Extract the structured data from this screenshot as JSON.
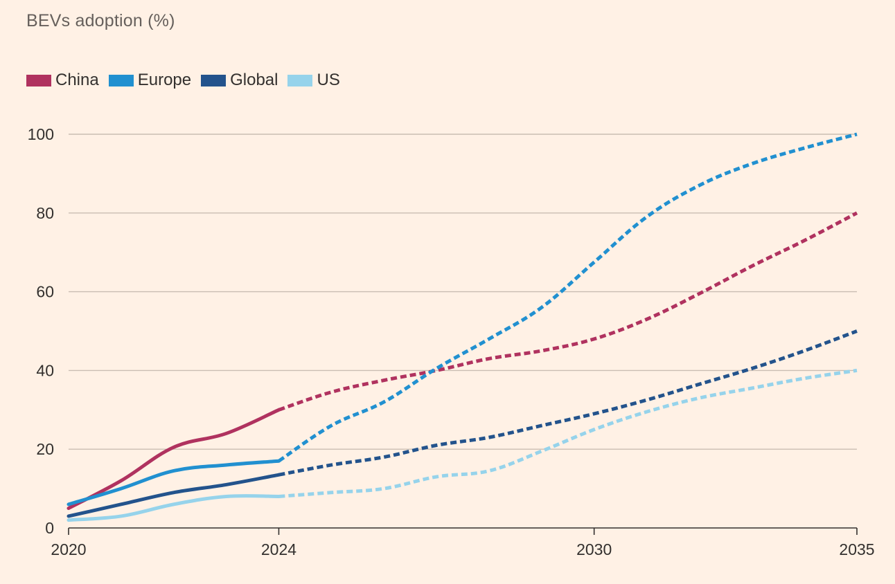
{
  "chart_data": {
    "type": "line",
    "title": "BEVs adoption (%)",
    "xlabel": "",
    "ylabel": "",
    "xlim": [
      2020,
      2035
    ],
    "ylim": [
      0,
      100
    ],
    "yticks": [
      0,
      20,
      40,
      60,
      80,
      100
    ],
    "xticks": [
      2020,
      2024,
      2030,
      2035
    ],
    "grid": true,
    "legend_position": "top-left",
    "solid_until": 2024,
    "series": [
      {
        "name": "China",
        "color": "#b0325f",
        "x": [
          2020,
          2021,
          2022,
          2023,
          2024,
          2025,
          2026,
          2027,
          2028,
          2029,
          2030,
          2031,
          2032,
          2033,
          2034,
          2035
        ],
        "values": [
          5,
          12,
          20.5,
          24,
          30,
          34.5,
          37.5,
          40,
          43,
          45,
          48,
          53,
          59.5,
          66.5,
          73,
          80
        ]
      },
      {
        "name": "Europe",
        "color": "#2190d0",
        "x": [
          2020,
          2021,
          2022,
          2023,
          2024,
          2025,
          2026,
          2027,
          2028,
          2029,
          2030,
          2031,
          2032,
          2033,
          2034,
          2035
        ],
        "values": [
          6,
          10,
          14.5,
          16,
          17,
          26,
          32,
          40.5,
          48,
          56,
          67.5,
          79,
          87,
          92.5,
          96.5,
          100
        ]
      },
      {
        "name": "Global",
        "color": "#23538c",
        "x": [
          2020,
          2021,
          2022,
          2023,
          2024,
          2025,
          2026,
          2027,
          2028,
          2029,
          2030,
          2031,
          2032,
          2033,
          2034,
          2035
        ],
        "values": [
          3,
          6,
          9,
          11,
          13.5,
          16,
          18,
          21,
          23,
          26,
          29,
          32.5,
          36.5,
          40.5,
          45,
          50
        ]
      },
      {
        "name": "US",
        "color": "#96d3eb",
        "x": [
          2020,
          2021,
          2022,
          2023,
          2024,
          2025,
          2026,
          2027,
          2028,
          2029,
          2030,
          2031,
          2032,
          2033,
          2034,
          2035
        ],
        "values": [
          2,
          3,
          6,
          8,
          8,
          9,
          10,
          13,
          14.5,
          19.5,
          25,
          29.5,
          33,
          35.5,
          38,
          40
        ]
      }
    ]
  }
}
